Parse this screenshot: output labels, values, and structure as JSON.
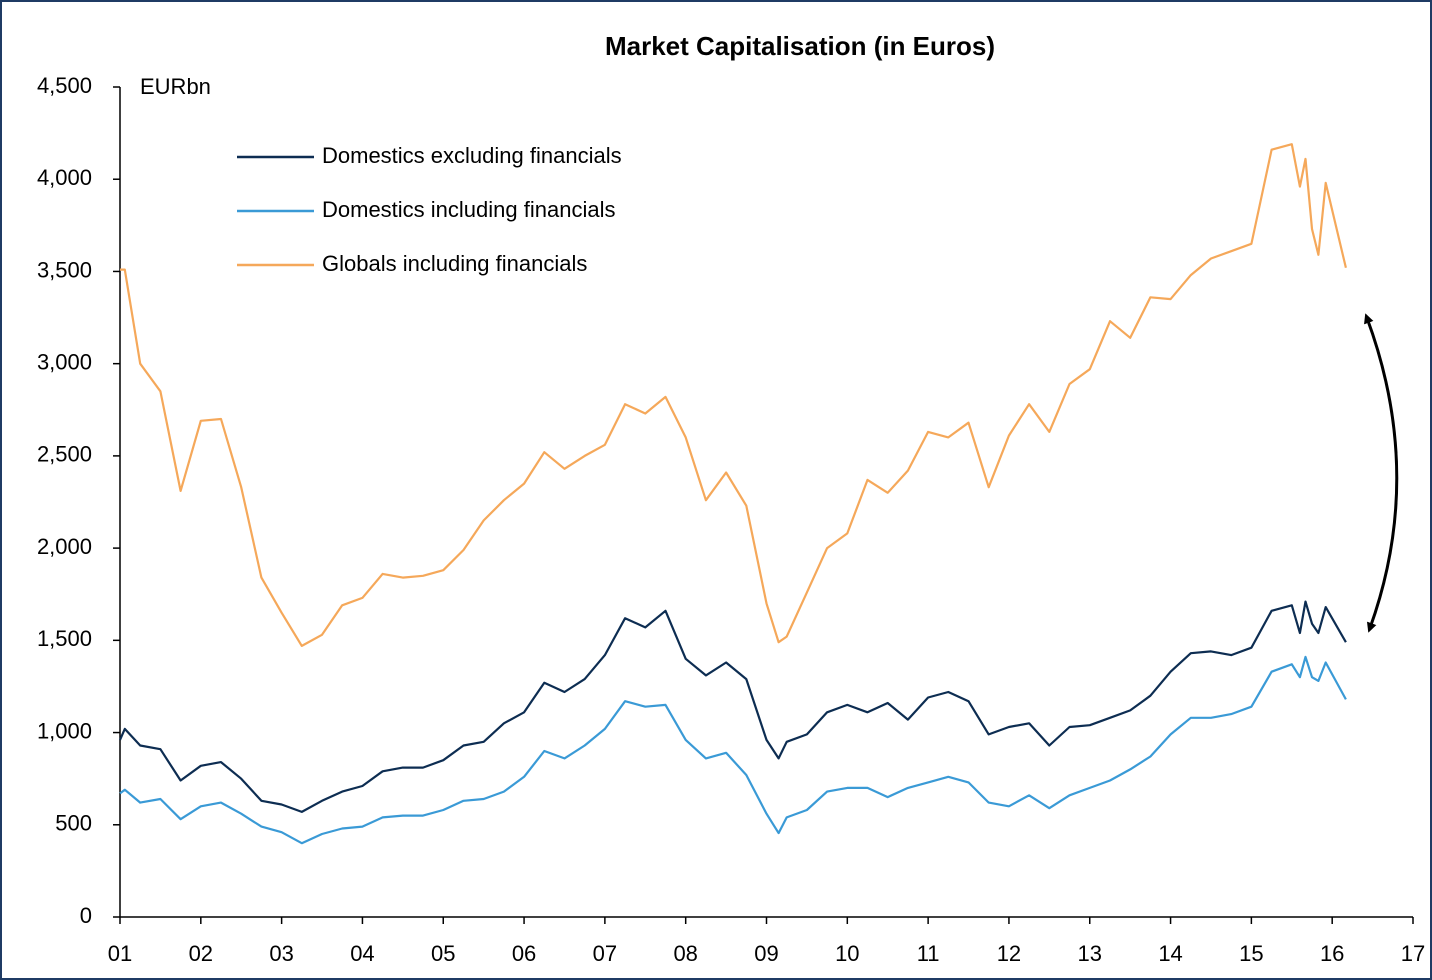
{
  "chart_data": {
    "type": "line",
    "title": "Market Capitalisation (in Euros)",
    "y_label": "EURbn",
    "x": [
      2001,
      2001.06,
      2001.25,
      2001.5,
      2001.75,
      2002,
      2002.25,
      2002.5,
      2002.75,
      2003,
      2003.25,
      2003.5,
      2003.75,
      2004,
      2004.25,
      2004.5,
      2004.75,
      2005,
      2005.25,
      2005.5,
      2005.75,
      2006,
      2006.25,
      2006.5,
      2006.75,
      2007,
      2007.25,
      2007.5,
      2007.75,
      2008,
      2008.25,
      2008.5,
      2008.75,
      2009,
      2009.15,
      2009.25,
      2009.5,
      2009.75,
      2010,
      2010.25,
      2010.5,
      2010.75,
      2011,
      2011.25,
      2011.5,
      2011.75,
      2012,
      2012.25,
      2012.5,
      2012.75,
      2013,
      2013.25,
      2013.5,
      2013.75,
      2014,
      2014.25,
      2014.5,
      2014.75,
      2015,
      2015.25,
      2015.5,
      2015.6,
      2015.67,
      2015.75,
      2015.83,
      2015.92,
      2016.17
    ],
    "series": [
      {
        "name": "Domestics excluding financials",
        "color": "#0d2d52",
        "values": [
          960,
          1020,
          930,
          910,
          740,
          820,
          840,
          750,
          630,
          610,
          570,
          630,
          680,
          710,
          790,
          810,
          810,
          850,
          930,
          950,
          1050,
          1110,
          1270,
          1220,
          1290,
          1420,
          1620,
          1570,
          1660,
          1400,
          1310,
          1380,
          1290,
          960,
          860,
          950,
          990,
          1110,
          1150,
          1110,
          1160,
          1070,
          1190,
          1220,
          1170,
          990,
          1030,
          1050,
          930,
          1030,
          1040,
          1080,
          1120,
          1200,
          1330,
          1430,
          1440,
          1420,
          1460,
          1660,
          1690,
          1540,
          1710,
          1590,
          1540,
          1680,
          1490
        ]
      },
      {
        "name": "Domestics including financials",
        "color": "#3a9ad6",
        "values": [
          670,
          690,
          620,
          640,
          530,
          600,
          620,
          560,
          490,
          460,
          400,
          450,
          480,
          490,
          540,
          550,
          550,
          580,
          630,
          640,
          680,
          760,
          900,
          860,
          930,
          1020,
          1170,
          1140,
          1150,
          960,
          860,
          890,
          770,
          560,
          455,
          540,
          580,
          680,
          700,
          700,
          650,
          700,
          730,
          760,
          730,
          620,
          600,
          660,
          590,
          660,
          700,
          740,
          800,
          870,
          990,
          1080,
          1080,
          1100,
          1140,
          1330,
          1370,
          1300,
          1410,
          1300,
          1280,
          1380,
          1180
        ]
      },
      {
        "name": "Globals including financials",
        "color": "#f5a85a",
        "values": [
          3510,
          3510,
          3000,
          2850,
          2310,
          2690,
          2700,
          2330,
          1840,
          1650,
          1470,
          1530,
          1690,
          1730,
          1860,
          1840,
          1850,
          1880,
          1990,
          2150,
          2260,
          2350,
          2520,
          2430,
          2500,
          2560,
          2780,
          2730,
          2820,
          2600,
          2260,
          2410,
          2230,
          1700,
          1490,
          1520,
          1760,
          2000,
          2080,
          2370,
          2300,
          2420,
          2630,
          2600,
          2680,
          2330,
          2610,
          2780,
          2630,
          2890,
          2970,
          3230,
          3140,
          3360,
          3350,
          3480,
          3570,
          3610,
          3650,
          4160,
          4190,
          3960,
          4110,
          3730,
          3590,
          3980,
          3520
        ]
      }
    ],
    "xlim": [
      2001,
      2017
    ],
    "xticks": [
      {
        "value": 2001,
        "label": "01"
      },
      {
        "value": 2002,
        "label": "02"
      },
      {
        "value": 2003,
        "label": "03"
      },
      {
        "value": 2004,
        "label": "04"
      },
      {
        "value": 2005,
        "label": "05"
      },
      {
        "value": 2006,
        "label": "06"
      },
      {
        "value": 2007,
        "label": "07"
      },
      {
        "value": 2008,
        "label": "08"
      },
      {
        "value": 2009,
        "label": "09"
      },
      {
        "value": 2010,
        "label": "10"
      },
      {
        "value": 2011,
        "label": "11"
      },
      {
        "value": 2012,
        "label": "12"
      },
      {
        "value": 2013,
        "label": "13"
      },
      {
        "value": 2014,
        "label": "14"
      },
      {
        "value": 2015,
        "label": "15"
      },
      {
        "value": 2016,
        "label": "16"
      },
      {
        "value": 2017,
        "label": "17"
      }
    ],
    "ylim": [
      0,
      4500
    ],
    "yticks": [
      0,
      500,
      {
        "value": 1000,
        "label": "1,000"
      },
      {
        "value": 1500,
        "label": "1,500"
      },
      {
        "value": 2000,
        "label": "2,000"
      },
      {
        "value": 2500,
        "label": "2,500"
      },
      {
        "value": 3000,
        "label": "3,000"
      },
      {
        "value": 3500,
        "label": "3,500"
      },
      {
        "value": 4000,
        "label": "4,000"
      },
      {
        "value": 4500,
        "label": "4,500"
      }
    ],
    "grid": false,
    "legend": "upper left"
  }
}
